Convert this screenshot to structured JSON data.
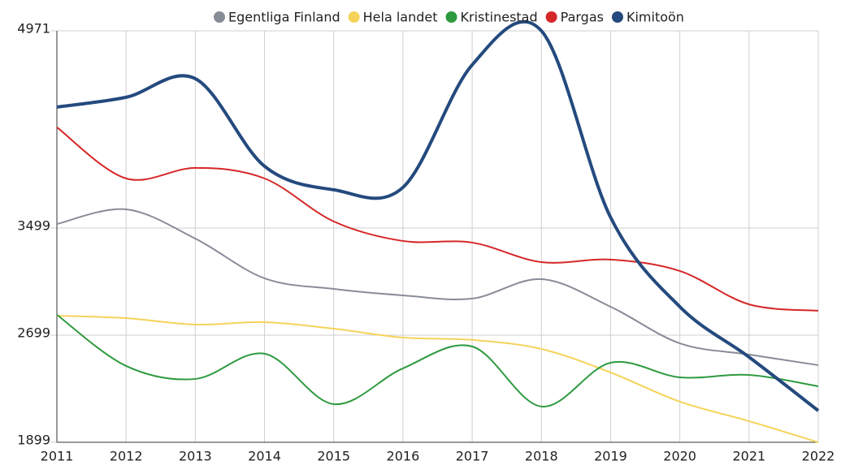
{
  "chart_data": {
    "type": "line",
    "x": [
      2011,
      2012,
      2013,
      2014,
      2015,
      2016,
      2017,
      2018,
      2019,
      2020,
      2021,
      2022
    ],
    "xlim": [
      2011,
      2022
    ],
    "xticks": [
      2011,
      2012,
      2013,
      2014,
      2015,
      2016,
      2017,
      2018,
      2019,
      2020,
      2021,
      2022
    ],
    "ylim": [
      1899,
      4971
    ],
    "yticks": [
      1899,
      2699,
      3499,
      4971
    ],
    "grid": true,
    "legend": "top",
    "series": [
      {
        "name": "Egentliga Finland",
        "color": "#888c97",
        "values": [
          3529,
          3638,
          3420,
          3123,
          3044,
          2996,
          2972,
          3117,
          2911,
          2638,
          2554,
          2475
        ]
      },
      {
        "name": "Hela landet",
        "color": "#f5d35a",
        "values": [
          2844,
          2826,
          2778,
          2796,
          2747,
          2681,
          2663,
          2596,
          2420,
          2202,
          2057,
          1899
        ]
      },
      {
        "name": "Kristinestad",
        "color": "#2e9a3f",
        "values": [
          2851,
          2469,
          2372,
          2560,
          2184,
          2451,
          2614,
          2166,
          2493,
          2384,
          2402,
          2317
        ]
      },
      {
        "name": "Pargas",
        "color": "#d62728",
        "values": [
          4251,
          3869,
          3948,
          3869,
          3548,
          3402,
          3390,
          3244,
          3263,
          3178,
          2929,
          2881
        ]
      },
      {
        "name": "Kimitoön",
        "color": "#244a7e",
        "values": [
          4402,
          4475,
          4614,
          3960,
          3784,
          3802,
          4717,
          4971,
          3578,
          2911,
          2535,
          2135
        ]
      }
    ]
  }
}
